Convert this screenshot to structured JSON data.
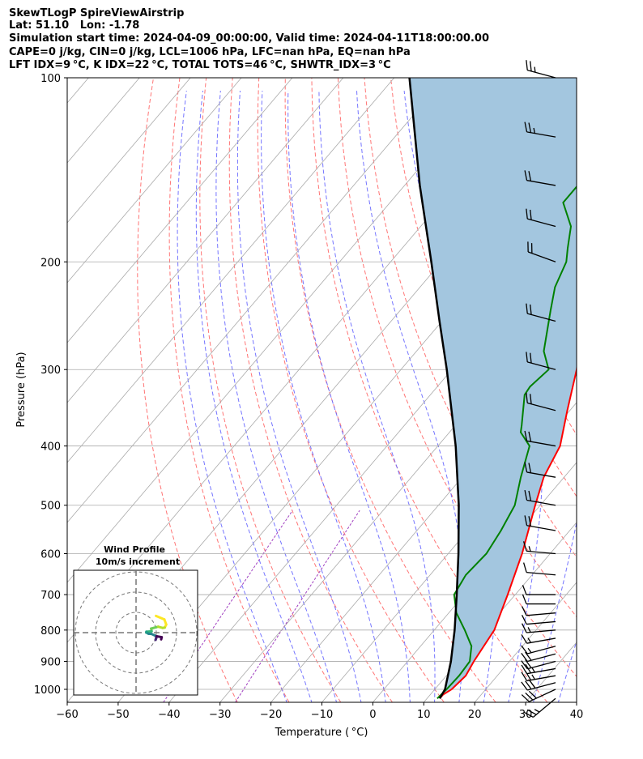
{
  "header": {
    "line1": "SkewTLogP SpireViewAirstrip",
    "line2": "Lat: 51.10   Lon: -1.78",
    "line3": "Simulation start time: 2024-04-09_00:00:00, Valid time: 2024-04-11T18:00:00.00",
    "line4": "CAPE=0 j/kg, CIN=0 j/kg, LCL=1006 hPa, LFC=nan hPa, EQ=nan hPa",
    "line5": "LFT IDX=9 °C, K IDX=22 °C, TOTAL TOTS=46 °C, SHWTR_IDX=3 °C"
  },
  "inset": {
    "title": "Wind Profile",
    "subtitle": "10m/s increment"
  },
  "colors": {
    "temperature": "#ff0000",
    "dewpoint": "#008000",
    "parcel": "#000000",
    "shade": "#a3c6df",
    "dry_adiabat": "#ff6666",
    "moist_adiabat": "#6666ff",
    "mixing_ratio": "#a040c0",
    "isotherm": "#aaaaaa"
  },
  "chart_data": {
    "type": "skewt",
    "xlabel": "Temperature ( °C)",
    "ylabel": "Pressure (hPa)",
    "xlim": [
      -60,
      40
    ],
    "ylim": [
      1050,
      100
    ],
    "x_ticks": [
      -60,
      -50,
      -40,
      -30,
      -20,
      -10,
      0,
      10,
      20,
      30,
      40
    ],
    "x_tick_labels": [
      "−60",
      "−50",
      "−40",
      "−30",
      "−20",
      "−10",
      "0",
      "10",
      "20",
      "30",
      "40"
    ],
    "y_ticks": [
      1000,
      900,
      800,
      700,
      600,
      500,
      400,
      300,
      200,
      100
    ],
    "y_tick_labels": [
      "1000",
      "900",
      "800",
      "700",
      "600",
      "500",
      "400",
      "300",
      "200",
      "100"
    ],
    "grid": true,
    "log_pressure": true,
    "series": [
      {
        "name": "temperature",
        "points": [
          [
            1035,
            12.5
          ],
          [
            1020,
            12.5
          ],
          [
            1000,
            13.3
          ],
          [
            950,
            13.8
          ],
          [
            900,
            13.0
          ],
          [
            800,
            11.8
          ],
          [
            700,
            8.5
          ],
          [
            600,
            4.5
          ],
          [
            500,
            -1.0
          ],
          [
            450,
            -4.0
          ],
          [
            400,
            -6.0
          ],
          [
            350,
            -10.5
          ],
          [
            300,
            -15.5
          ],
          [
            270,
            -19.5
          ],
          [
            250,
            -23.0
          ],
          [
            230,
            -26.0
          ],
          [
            200,
            -29.0
          ],
          [
            180,
            -31.5
          ],
          [
            170,
            -34.5
          ],
          [
            150,
            -35.0
          ],
          [
            130,
            -35.5
          ],
          [
            115,
            -36.0
          ],
          [
            100,
            -37.5
          ]
        ]
      },
      {
        "name": "dewpoint",
        "points": [
          [
            1035,
            12.0
          ],
          [
            1000,
            12.3
          ],
          [
            950,
            12.5
          ],
          [
            900,
            12.2
          ],
          [
            850,
            10.0
          ],
          [
            800,
            6.0
          ],
          [
            750,
            1.5
          ],
          [
            700,
            -2.0
          ],
          [
            650,
            -3.0
          ],
          [
            600,
            -2.5
          ],
          [
            550,
            -3.5
          ],
          [
            500,
            -5.0
          ],
          [
            450,
            -8.5
          ],
          [
            400,
            -12.0
          ],
          [
            380,
            -16.0
          ],
          [
            370,
            -17.0
          ],
          [
            330,
            -21.5
          ],
          [
            320,
            -21.8
          ],
          [
            300,
            -21.0
          ],
          [
            280,
            -25.0
          ],
          [
            240,
            -30.5
          ],
          [
            220,
            -33.5
          ],
          [
            200,
            -35.5
          ],
          [
            190,
            -37.5
          ],
          [
            175,
            -40.5
          ],
          [
            160,
            -46.0
          ],
          [
            130,
            -46.0
          ],
          [
            100,
            -46.5
          ]
        ]
      },
      {
        "name": "parcel",
        "points": [
          [
            1035,
            12.5
          ],
          [
            1000,
            12.0
          ],
          [
            900,
            8.5
          ],
          [
            800,
            4.0
          ],
          [
            700,
            -1.5
          ],
          [
            600,
            -8.0
          ],
          [
            500,
            -16.0
          ],
          [
            400,
            -26.5
          ],
          [
            300,
            -41.0
          ],
          [
            250,
            -50.5
          ],
          [
            200,
            -62.0
          ],
          [
            150,
            -77.0
          ],
          [
            100,
            -97.0
          ]
        ]
      }
    ],
    "wind_profile": {
      "pressure": [
        1035,
        1000,
        975,
        950,
        925,
        900,
        875,
        850,
        825,
        800,
        775,
        750,
        725,
        700,
        650,
        600,
        550,
        500,
        450,
        400,
        350,
        300,
        250,
        200,
        175,
        150,
        125,
        100
      ],
      "direction_deg": [
        230,
        245,
        255,
        260,
        260,
        255,
        255,
        255,
        260,
        265,
        265,
        265,
        270,
        270,
        275,
        275,
        280,
        280,
        280,
        280,
        285,
        285,
        285,
        290,
        285,
        280,
        280,
        285
      ],
      "speed_kt": [
        25,
        30,
        30,
        28,
        26,
        22,
        20,
        15,
        15,
        15,
        10,
        10,
        10,
        10,
        12,
        15,
        20,
        20,
        20,
        20,
        20,
        20,
        20,
        20,
        20,
        20,
        25,
        25
      ]
    }
  }
}
